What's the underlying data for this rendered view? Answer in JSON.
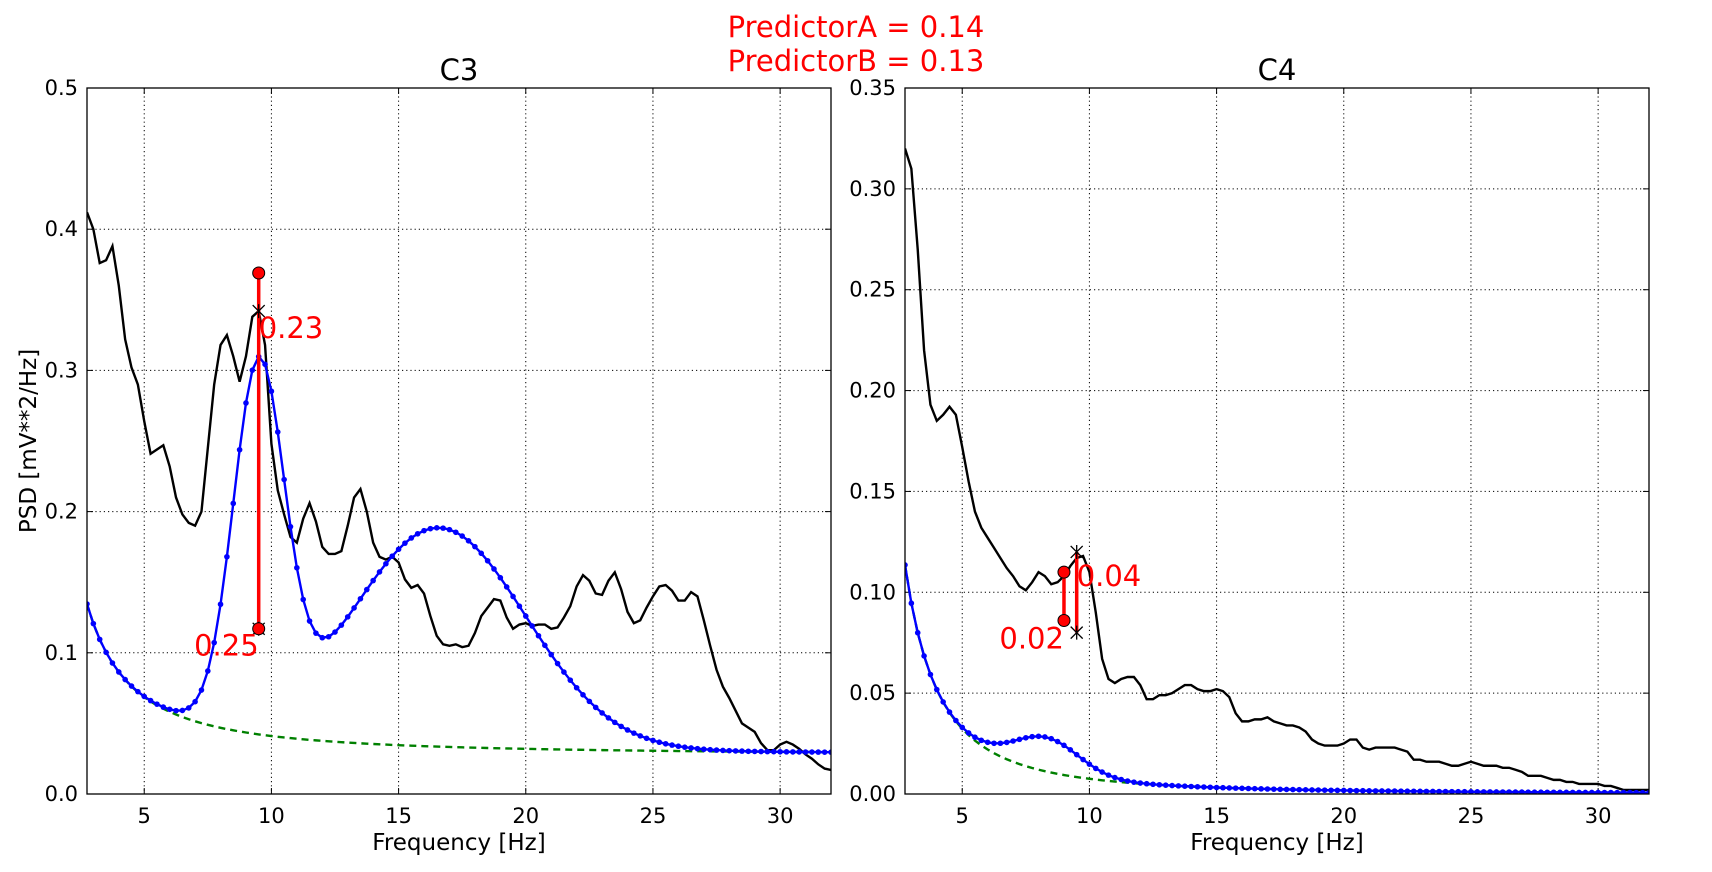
{
  "suptitle": {
    "line1": "PredictorA = 0.14",
    "line2": "PredictorB = 0.13"
  },
  "colors": {
    "measured": "#000000",
    "fit": "#0000ff",
    "aperiodic": "#008000",
    "annot": "#ff0000",
    "grid": "#000000"
  },
  "chart_data": [
    {
      "type": "line",
      "title": "C3",
      "xlabel": "Frequency [Hz]",
      "ylabel": "PSD [mV**2/Hz]",
      "xlim": [
        2.75,
        32
      ],
      "ylim": [
        0,
        0.5
      ],
      "xticks": [
        5,
        10,
        15,
        20,
        25,
        30
      ],
      "xtick_labels": [
        "5",
        "10",
        "15",
        "20",
        "25",
        "30"
      ],
      "yticks": [
        0,
        0.1,
        0.2,
        0.3,
        0.4,
        0.5
      ],
      "ytick_labels": [
        "0.0",
        "0.1",
        "0.2",
        "0.3",
        "0.4",
        "0.5"
      ],
      "grid": true,
      "aperiodic": {
        "a": 0.0275,
        "b": 0.54,
        "n": 1.6
      },
      "fit_peaks": [
        {
          "f": 9.5,
          "amp": 0.25,
          "sd": 1.0
        },
        {
          "f": 16.6,
          "amp": 0.155,
          "sd": 3.4
        }
      ],
      "measured": {
        "x": [
          2.75,
          3.0,
          3.25,
          3.5,
          3.75,
          4.0,
          4.25,
          4.5,
          4.75,
          5.0,
          5.25,
          5.5,
          5.75,
          6.0,
          6.25,
          6.5,
          6.75,
          7.0,
          7.25,
          7.5,
          7.75,
          8.0,
          8.25,
          8.5,
          8.75,
          9.0,
          9.25,
          9.5,
          9.75,
          10.0,
          10.25,
          10.5,
          10.75,
          11.0,
          11.25,
          11.5,
          11.75,
          12.0,
          12.25,
          12.5,
          12.75,
          13.0,
          13.25,
          13.5,
          13.75,
          14.0,
          14.25,
          14.5,
          14.75,
          15.0,
          15.25,
          15.5,
          15.75,
          16.0,
          16.25,
          16.5,
          16.75,
          17.0,
          17.25,
          17.5,
          17.75,
          18.0,
          18.25,
          18.5,
          18.75,
          19.0,
          19.25,
          19.5,
          19.75,
          20.0,
          20.25,
          20.5,
          20.75,
          21.0,
          21.25,
          21.5,
          21.75,
          22.0,
          22.25,
          22.5,
          22.75,
          23.0,
          23.25,
          23.5,
          23.75,
          24.0,
          24.25,
          24.5,
          24.75,
          25.0,
          25.25,
          25.5,
          25.75,
          26.0,
          26.25,
          26.5,
          26.75,
          27.0,
          27.25,
          27.5,
          27.75,
          28.0,
          28.25,
          28.5,
          28.75,
          29.0,
          29.25,
          29.5,
          29.75,
          30.0,
          30.25,
          30.5,
          30.75,
          31.0,
          31.25,
          31.5,
          31.75,
          32.0
        ],
        "y": [
          0.412,
          0.4,
          0.376,
          0.378,
          0.388,
          0.36,
          0.322,
          0.302,
          0.29,
          0.264,
          0.241,
          0.244,
          0.247,
          0.232,
          0.21,
          0.198,
          0.192,
          0.19,
          0.2,
          0.245,
          0.29,
          0.318,
          0.325,
          0.31,
          0.292,
          0.31,
          0.338,
          0.342,
          0.318,
          0.248,
          0.215,
          0.198,
          0.182,
          0.178,
          0.195,
          0.206,
          0.193,
          0.175,
          0.17,
          0.17,
          0.172,
          0.19,
          0.21,
          0.216,
          0.2,
          0.178,
          0.168,
          0.166,
          0.168,
          0.164,
          0.152,
          0.146,
          0.148,
          0.142,
          0.126,
          0.112,
          0.106,
          0.105,
          0.106,
          0.104,
          0.105,
          0.114,
          0.126,
          0.132,
          0.138,
          0.137,
          0.125,
          0.117,
          0.12,
          0.121,
          0.119,
          0.12,
          0.12,
          0.117,
          0.118,
          0.125,
          0.133,
          0.147,
          0.155,
          0.151,
          0.142,
          0.141,
          0.151,
          0.157,
          0.145,
          0.129,
          0.121,
          0.123,
          0.132,
          0.14,
          0.147,
          0.148,
          0.144,
          0.137,
          0.137,
          0.143,
          0.14,
          0.123,
          0.105,
          0.088,
          0.076,
          0.068,
          0.059,
          0.05,
          0.047,
          0.044,
          0.036,
          0.031,
          0.031,
          0.035,
          0.037,
          0.035,
          0.032,
          0.028,
          0.025,
          0.021,
          0.018,
          0.017
        ]
      },
      "peak_marker": {
        "x": 9.5,
        "y": 0.369
      },
      "fit_marker": {
        "x": 9.5,
        "y": 0.342
      },
      "base_marker": {
        "x": 9.5,
        "y": 0.117
      },
      "annotations": [
        {
          "text": "0.23",
          "x": 9.5,
          "y": 0.33,
          "anchor": "start"
        },
        {
          "text": "0.25",
          "x": 9.5,
          "y": 0.105,
          "anchor": "end"
        }
      ]
    },
    {
      "type": "line",
      "title": "C4",
      "xlabel": "Frequency [Hz]",
      "ylabel": "",
      "xlim": [
        2.75,
        32
      ],
      "ylim": [
        0,
        0.35
      ],
      "xticks": [
        5,
        10,
        15,
        20,
        25,
        30
      ],
      "xtick_labels": [
        "5",
        "10",
        "15",
        "20",
        "25",
        "30"
      ],
      "yticks": [
        0,
        0.05,
        0.1,
        0.15,
        0.2,
        0.25,
        0.3,
        0.35
      ],
      "ytick_labels": [
        "0.00",
        "0.05",
        "0.10",
        "0.15",
        "0.20",
        "0.25",
        "0.30",
        "0.35"
      ],
      "grid": true,
      "aperiodic": {
        "a": 0.0,
        "b": 0.95,
        "n": 2.1
      },
      "fit_peaks": [
        {
          "f": 8.3,
          "amp": 0.017,
          "sd": 1.3
        }
      ],
      "measured": {
        "x": [
          2.75,
          3.0,
          3.25,
          3.5,
          3.75,
          4.0,
          4.25,
          4.5,
          4.75,
          5.0,
          5.25,
          5.5,
          5.75,
          6.0,
          6.25,
          6.5,
          6.75,
          7.0,
          7.25,
          7.5,
          7.75,
          8.0,
          8.25,
          8.5,
          8.75,
          9.0,
          9.25,
          9.5,
          9.75,
          10.0,
          10.25,
          10.5,
          10.75,
          11.0,
          11.25,
          11.5,
          11.75,
          12.0,
          12.25,
          12.5,
          12.75,
          13.0,
          13.25,
          13.5,
          13.75,
          14.0,
          14.25,
          14.5,
          14.75,
          15.0,
          15.25,
          15.5,
          15.75,
          16.0,
          16.25,
          16.5,
          16.75,
          17.0,
          17.25,
          17.5,
          17.75,
          18.0,
          18.25,
          18.5,
          18.75,
          19.0,
          19.25,
          19.5,
          19.75,
          20.0,
          20.25,
          20.5,
          20.75,
          21.0,
          21.25,
          21.5,
          21.75,
          22.0,
          22.25,
          22.5,
          22.75,
          23.0,
          23.25,
          23.5,
          23.75,
          24.0,
          24.25,
          24.5,
          24.75,
          25.0,
          25.25,
          25.5,
          25.75,
          26.0,
          26.25,
          26.5,
          26.75,
          27.0,
          27.25,
          27.5,
          27.75,
          28.0,
          28.25,
          28.5,
          28.75,
          29.0,
          29.25,
          29.5,
          29.75,
          30.0,
          30.25,
          30.5,
          30.75,
          31.0,
          31.25,
          31.5,
          31.75,
          32.0
        ],
        "y": [
          0.32,
          0.31,
          0.27,
          0.22,
          0.193,
          0.185,
          0.188,
          0.192,
          0.188,
          0.172,
          0.155,
          0.14,
          0.132,
          0.127,
          0.122,
          0.117,
          0.112,
          0.108,
          0.103,
          0.101,
          0.105,
          0.11,
          0.108,
          0.104,
          0.105,
          0.108,
          0.113,
          0.117,
          0.118,
          0.11,
          0.09,
          0.067,
          0.057,
          0.055,
          0.057,
          0.058,
          0.058,
          0.054,
          0.047,
          0.047,
          0.049,
          0.049,
          0.05,
          0.052,
          0.054,
          0.054,
          0.052,
          0.051,
          0.051,
          0.052,
          0.051,
          0.048,
          0.04,
          0.036,
          0.036,
          0.037,
          0.037,
          0.038,
          0.036,
          0.035,
          0.034,
          0.034,
          0.033,
          0.031,
          0.027,
          0.025,
          0.024,
          0.024,
          0.024,
          0.025,
          0.027,
          0.027,
          0.023,
          0.022,
          0.023,
          0.023,
          0.023,
          0.023,
          0.022,
          0.021,
          0.017,
          0.017,
          0.016,
          0.016,
          0.016,
          0.015,
          0.014,
          0.014,
          0.015,
          0.016,
          0.015,
          0.014,
          0.014,
          0.014,
          0.013,
          0.013,
          0.012,
          0.011,
          0.009,
          0.009,
          0.009,
          0.008,
          0.007,
          0.007,
          0.006,
          0.006,
          0.005,
          0.005,
          0.005,
          0.005,
          0.004,
          0.004,
          0.003,
          0.002,
          0.002,
          0.002,
          0.002,
          0.002
        ]
      },
      "peak_marker": {
        "x": 9.0,
        "y": 0.11
      },
      "fit_marker": {
        "x": 9.5,
        "y": 0.12
      },
      "base_marker": {
        "x": 9.5,
        "y": 0.08
      },
      "base_marker2": {
        "x": 9.0,
        "y": 0.086
      },
      "annotations": [
        {
          "text": "0.04",
          "x": 9.5,
          "y": 0.108,
          "anchor": "start"
        },
        {
          "text": "0.02",
          "x": 9.0,
          "y": 0.077,
          "anchor": "end"
        }
      ]
    }
  ]
}
